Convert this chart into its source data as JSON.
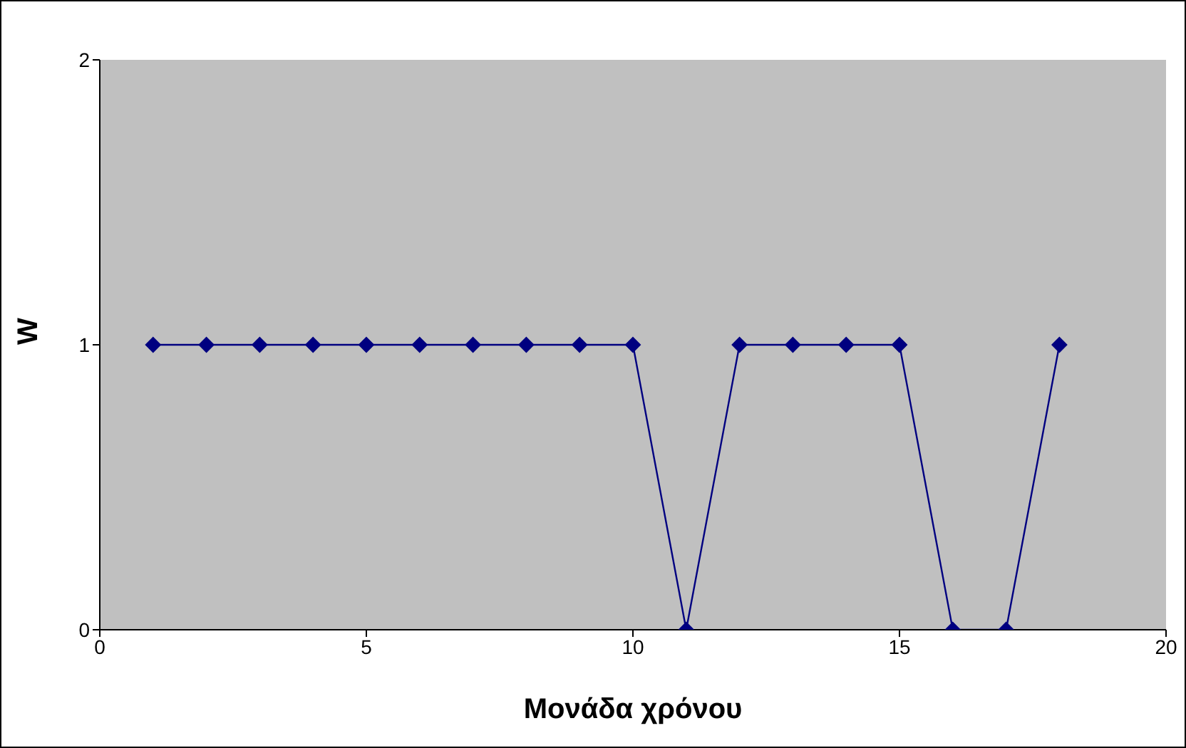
{
  "chart_data": {
    "type": "line",
    "xlabel": "Μονάδα χρόνου",
    "ylabel": "W",
    "x": [
      1,
      2,
      3,
      4,
      5,
      6,
      7,
      8,
      9,
      10,
      11,
      12,
      13,
      14,
      15,
      16,
      17,
      18
    ],
    "series": [
      {
        "color": "#000080",
        "values": [
          1,
          1,
          1,
          1,
          1,
          1,
          1,
          1,
          1,
          1,
          0,
          1,
          1,
          1,
          1,
          0,
          0,
          1
        ]
      }
    ],
    "xlim": [
      0,
      20
    ],
    "xticks": [
      0,
      5,
      10,
      15,
      20
    ],
    "ylim": [
      0,
      2
    ],
    "yticks": [
      0,
      1,
      2
    ],
    "grid": false,
    "legend": false,
    "marker": "diamond",
    "line_style": "solid"
  }
}
